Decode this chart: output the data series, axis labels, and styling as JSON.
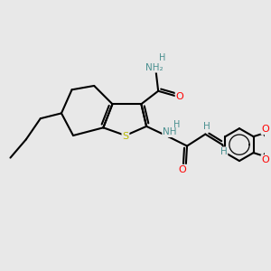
{
  "background_color": "#e8e8e8",
  "atom_colors": {
    "C": "#000000",
    "N": "#1a1aff",
    "N_teal": "#4a9090",
    "O": "#ff0000",
    "S": "#b8b800",
    "H": "#4a9090"
  },
  "bond_color": "#000000",
  "bond_width": 1.5
}
